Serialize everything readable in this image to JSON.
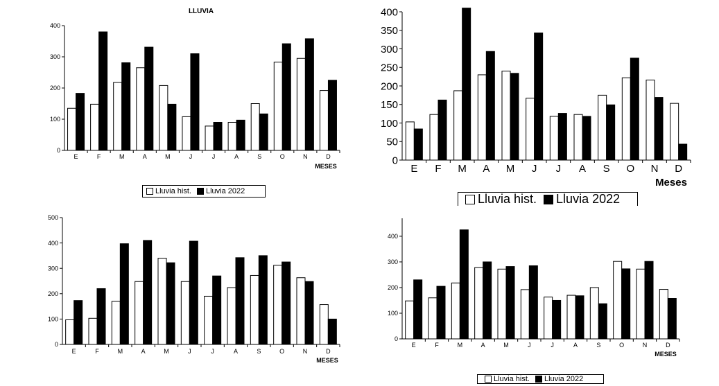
{
  "chart_data": [
    {
      "type": "bar",
      "title": "LLUVIA",
      "xlabel": "MESES",
      "ylim": [
        0,
        400
      ],
      "yticks": [
        "0",
        "100",
        "200",
        "300",
        "400"
      ],
      "categories": [
        "E",
        "F",
        "M",
        "A",
        "M",
        "J",
        "J",
        "A",
        "S",
        "O",
        "N",
        "D"
      ],
      "series": [
        {
          "name": "Lluvia hist.",
          "values": [
            135,
            148,
            218,
            265,
            208,
            108,
            78,
            90,
            150,
            283,
            295,
            192
          ]
        },
        {
          "name": "Lluvia 2022",
          "values": [
            183,
            380,
            281,
            331,
            148,
            310,
            90,
            97,
            117,
            342,
            358,
            225
          ]
        }
      ],
      "legend": "bottom"
    },
    {
      "type": "bar",
      "title": "",
      "xlabel": "Meses",
      "ylim": [
        0,
        400
      ],
      "yticks": [
        "0",
        "50",
        "100",
        "150",
        "200",
        "250",
        "300",
        "350",
        "400"
      ],
      "categories": [
        "E",
        "F",
        "M",
        "A",
        "M",
        "J",
        "J",
        "A",
        "S",
        "O",
        "N",
        "D"
      ],
      "series": [
        {
          "values": [
            103,
            123,
            187,
            230,
            240,
            167,
            118,
            123,
            175,
            222,
            216,
            153
          ]
        },
        {
          "values": [
            84,
            162,
            410,
            293,
            234,
            343,
            126,
            118,
            149,
            275,
            169,
            43
          ]
        }
      ],
      "legend": "bottom"
    },
    {
      "type": "bar",
      "title": "",
      "xlabel": "MESES",
      "ylim": [
        0,
        500
      ],
      "yticks": [
        "0",
        "100",
        "200",
        "300",
        "400",
        "500"
      ],
      "categories": [
        "E",
        "F",
        "M",
        "A",
        "M",
        "J",
        "J",
        "A",
        "S",
        "O",
        "N",
        "D"
      ],
      "series": [
        {
          "values": [
            97,
            103,
            170,
            248,
            340,
            248,
            190,
            224,
            272,
            312,
            263,
            157
          ]
        },
        {
          "values": [
            173,
            220,
            397,
            410,
            322,
            407,
            270,
            342,
            350,
            325,
            248,
            100
          ]
        }
      ],
      "legend": "none"
    },
    {
      "type": "bar",
      "title": "",
      "xlabel": "MESES",
      "ylim": [
        0,
        470
      ],
      "yticks": [
        "0",
        "100",
        "200",
        "300",
        "400"
      ],
      "categories": [
        "E",
        "F",
        "M",
        "A",
        "M",
        "J",
        "J",
        "A",
        "S",
        "O",
        "N",
        "D"
      ],
      "series": [
        {
          "name": "Lluvia hist.",
          "values": [
            148,
            160,
            218,
            278,
            272,
            192,
            163,
            170,
            200,
            302,
            272,
            193
          ]
        },
        {
          "name": "Lluvia 2022",
          "values": [
            230,
            205,
            425,
            300,
            282,
            285,
            150,
            168,
            137,
            273,
            302,
            158
          ]
        }
      ],
      "legend": "bottom"
    }
  ],
  "legends": {
    "chart1": {
      "hist": "Lluvia hist.",
      "cur": "Lluvia 2022"
    },
    "chart2": {
      "hist": "Lluvia hist.",
      "cur": "Lluvia 2022"
    },
    "chart4": {
      "hist": "Lluvia hist.",
      "cur": "Lluvia 2022"
    }
  },
  "colors": {
    "hist_fill": "#ffffff",
    "cur_fill": "#000000",
    "stroke": "#000000"
  }
}
